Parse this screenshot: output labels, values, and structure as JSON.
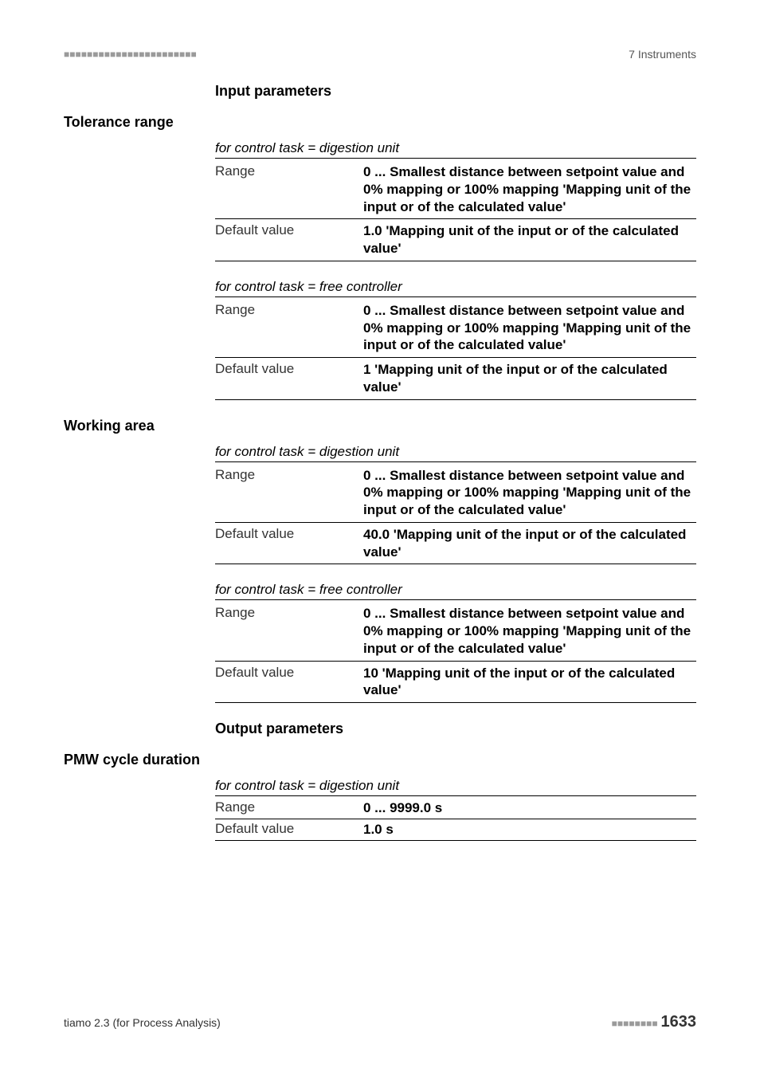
{
  "header": {
    "dashes": "■■■■■■■■■■■■■■■■■■■■■■■",
    "section": "7 Instruments"
  },
  "section_input_heading": "Input parameters",
  "tolerance_range": {
    "heading": "Tolerance range",
    "block_a": {
      "caption": "for control task = digestion unit",
      "range_label": "Range",
      "range_value": "0 ... Smallest distance between setpoint value and 0% mapping or 100% mapping 'Mapping unit of the input or of the calculated value'",
      "default_label": "Default value",
      "default_value": "1.0 'Mapping unit of the input or of the calculated value'"
    },
    "block_b": {
      "caption": "for control task = free controller",
      "range_label": "Range",
      "range_value": "0 ... Smallest distance between setpoint value and 0% mapping or 100% mapping 'Mapping unit of the input or of the calculated value'",
      "default_label": "Default value",
      "default_value": "1 'Mapping unit of the input or of the calculated value'"
    }
  },
  "working_area": {
    "heading": "Working area",
    "block_a": {
      "caption": "for control task = digestion unit",
      "range_label": "Range",
      "range_value": "0 ... Smallest distance between setpoint value and 0% mapping or 100% mapping 'Mapping unit of the input or of the calculated value'",
      "default_label": "Default value",
      "default_value": "40.0 'Mapping unit of the input or of the calculated value'"
    },
    "block_b": {
      "caption": "for control task = free controller",
      "range_label": "Range",
      "range_value": "0 ... Smallest distance between setpoint value and 0% mapping or 100% mapping 'Mapping unit of the input or of the calculated value'",
      "default_label": "Default value",
      "default_value": "10 'Mapping unit of the input or of the calculated value'"
    }
  },
  "section_output_heading": "Output parameters",
  "pmw": {
    "heading": "PMW cycle duration",
    "block_a": {
      "caption": "for control task = digestion unit",
      "range_label": "Range",
      "range_value": "0 ... 9999.0 s",
      "default_label": "Default value",
      "default_value": "1.0 s"
    }
  },
  "footer": {
    "left": "tiamo 2.3 (for Process Analysis)",
    "dashes": "■■■■■■■■",
    "page": "1633"
  }
}
